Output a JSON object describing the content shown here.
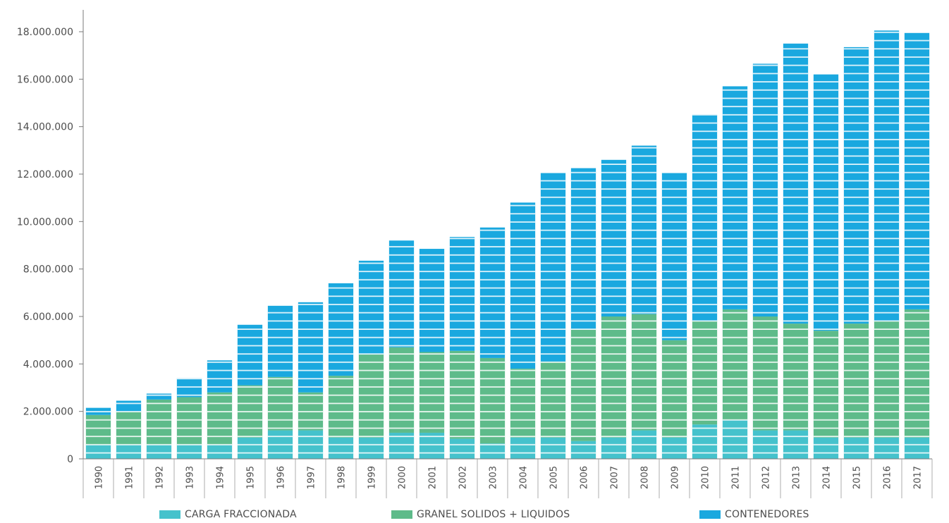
{
  "chart_data": {
    "type": "bar",
    "stacked": true,
    "categories": [
      "1990",
      "1991",
      "1992",
      "1993",
      "1994",
      "1995",
      "1996",
      "1997",
      "1998",
      "1999",
      "2000",
      "2001",
      "2002",
      "2003",
      "2004",
      "2005",
      "2006",
      "2007",
      "2008",
      "2009",
      "2010",
      "2011",
      "2012",
      "2013",
      "2014",
      "2015",
      "2016",
      "2017"
    ],
    "series": [
      {
        "name": "CARGA FRACCIONADA",
        "color": "#45c2cc",
        "values": [
          600000,
          600000,
          600000,
          600000,
          600000,
          900000,
          1200000,
          1200000,
          900000,
          900000,
          1100000,
          1100000,
          850000,
          650000,
          900000,
          900000,
          750000,
          900000,
          1200000,
          900000,
          1450000,
          1650000,
          1200000,
          1200000,
          900000,
          900000,
          900000,
          900000
        ]
      },
      {
        "name": "GRANEL SOLIDOS + LIQUIDOS",
        "color": "#5ebb8a",
        "values": [
          1250000,
          1400000,
          1900000,
          2000000,
          2200000,
          2200000,
          2250000,
          1600000,
          2600000,
          3500000,
          3600000,
          3400000,
          3700000,
          3600000,
          2900000,
          3200000,
          4700000,
          5100000,
          4900000,
          4100000,
          4350000,
          4650000,
          4800000,
          4500000,
          4500000,
          4800000,
          4900000,
          5400000
        ]
      },
      {
        "name": "CONTENEDORES",
        "color": "#1aa8df",
        "values": [
          300000,
          450000,
          250000,
          800000,
          1350000,
          2550000,
          3000000,
          3800000,
          3900000,
          3950000,
          4500000,
          4350000,
          4800000,
          5500000,
          7000000,
          7950000,
          6800000,
          6600000,
          7100000,
          7050000,
          8700000,
          9400000,
          10650000,
          11800000,
          10800000,
          11650000,
          12250000,
          11650000
        ]
      }
    ],
    "ylim": [
      0,
      19000000
    ],
    "yticks": [
      0,
      2000000,
      4000000,
      6000000,
      8000000,
      10000000,
      12000000,
      14000000,
      16000000,
      18000000
    ],
    "ytick_labels": [
      "0",
      "2.000.000",
      "4.000.000",
      "6.000.000",
      "8.000.000",
      "10.000.000",
      "12.000.000",
      "14.000.000",
      "16.000.000",
      "18.000.000"
    ],
    "grid": false,
    "bar_stripes": true,
    "legend_position": "bottom",
    "title": "",
    "xlabel": "",
    "ylabel": ""
  }
}
